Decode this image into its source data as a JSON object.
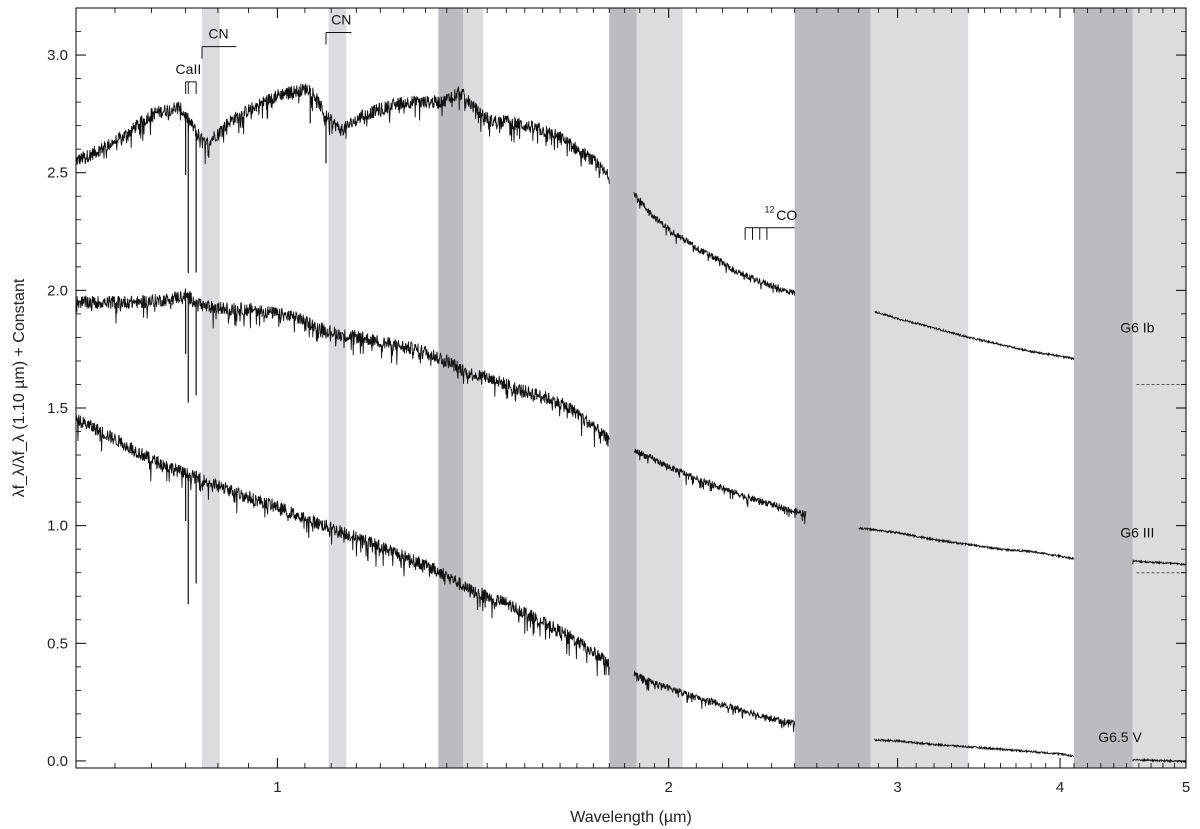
{
  "chart_data": {
    "type": "line",
    "xlabel": "Wavelength (µm)",
    "ylabel": "λf_λ/λf_λ (1.10 µm) + Constant",
    "x_scale": "log",
    "xlim": [
      0.7,
      5.0
    ],
    "ylim": [
      -0.03,
      3.2
    ],
    "x_ticks": [
      {
        "value": 1,
        "label": "1"
      },
      {
        "value": 2,
        "label": "2"
      },
      {
        "value": 3,
        "label": "3"
      },
      {
        "value": 4,
        "label": "4"
      },
      {
        "value": 5,
        "label": "5"
      }
    ],
    "y_ticks": [
      {
        "value": 0.0,
        "label": "0.0"
      },
      {
        "value": 0.5,
        "label": "0.5"
      },
      {
        "value": 1.0,
        "label": "1.0"
      },
      {
        "value": 1.5,
        "label": "1.5"
      },
      {
        "value": 2.0,
        "label": "2.0"
      },
      {
        "value": 2.5,
        "label": "2.5"
      },
      {
        "value": 3.0,
        "label": "3.0"
      }
    ],
    "bands": [
      {
        "x0": 0.875,
        "x1": 0.903,
        "shade": "light"
      },
      {
        "x0": 1.095,
        "x1": 1.13,
        "shade": "light"
      },
      {
        "x0": 1.33,
        "x1": 1.39,
        "shade": "dark"
      },
      {
        "x0": 1.39,
        "x1": 1.44,
        "shade": "light"
      },
      {
        "x0": 1.8,
        "x1": 1.89,
        "shade": "dark"
      },
      {
        "x0": 1.89,
        "x1": 2.05,
        "shade": "light"
      },
      {
        "x0": 2.5,
        "x1": 2.86,
        "shade": "dark"
      },
      {
        "x0": 2.86,
        "x1": 3.4,
        "shade": "light"
      },
      {
        "x0": 4.1,
        "x1": 4.55,
        "shade": "dark"
      },
      {
        "x0": 4.55,
        "x1": 5.0,
        "shade": "light"
      }
    ],
    "series": [
      {
        "name": "G6 Ib",
        "segments": [
          {
            "x": [
              0.7,
              0.72,
              0.76,
              0.8,
              0.84,
              0.88,
              0.92,
              0.96,
              1.0,
              1.04,
              1.06,
              1.09,
              1.12,
              1.16,
              1.2,
              1.25,
              1.3,
              1.34,
              1.38,
              1.42,
              1.46,
              1.5,
              1.55,
              1.6,
              1.65,
              1.7,
              1.75,
              1.8
            ],
            "y": [
              2.55,
              2.58,
              2.65,
              2.75,
              2.78,
              2.62,
              2.72,
              2.78,
              2.83,
              2.85,
              2.86,
              2.74,
              2.68,
              2.74,
              2.77,
              2.8,
              2.8,
              2.8,
              2.85,
              2.77,
              2.72,
              2.72,
              2.7,
              2.68,
              2.65,
              2.6,
              2.55,
              2.48
            ]
          },
          {
            "x": [
              1.88,
              1.92,
              1.96,
              2.0,
              2.05,
              2.1,
              2.15,
              2.2,
              2.25,
              2.3,
              2.35,
              2.4,
              2.45,
              2.5
            ],
            "y": [
              2.42,
              2.35,
              2.3,
              2.26,
              2.22,
              2.18,
              2.15,
              2.12,
              2.08,
              2.06,
              2.04,
              2.02,
              2.0,
              1.99
            ]
          },
          {
            "x": [
              2.88,
              3.0,
              3.2,
              3.4,
              3.6,
              3.8,
              4.0,
              4.1
            ],
            "y": [
              1.91,
              1.88,
              1.84,
              1.8,
              1.77,
              1.74,
              1.72,
              1.71
            ]
          }
        ]
      },
      {
        "name": "G6 III",
        "segments": [
          {
            "x": [
              0.7,
              0.74,
              0.78,
              0.82,
              0.85,
              0.88,
              0.92,
              0.96,
              1.0,
              1.04,
              1.08,
              1.12,
              1.16,
              1.2,
              1.25,
              1.3,
              1.35,
              1.4,
              1.45,
              1.5,
              1.55,
              1.6,
              1.65,
              1.7,
              1.75,
              1.8
            ],
            "y": [
              1.95,
              1.95,
              1.95,
              1.96,
              1.98,
              1.93,
              1.92,
              1.92,
              1.9,
              1.88,
              1.84,
              1.81,
              1.8,
              1.78,
              1.76,
              1.74,
              1.7,
              1.65,
              1.63,
              1.6,
              1.57,
              1.55,
              1.52,
              1.48,
              1.42,
              1.36
            ]
          },
          {
            "x": [
              1.88,
              1.95,
              2.0,
              2.1,
              2.2,
              2.3,
              2.4,
              2.5,
              2.55
            ],
            "y": [
              1.32,
              1.28,
              1.25,
              1.2,
              1.16,
              1.12,
              1.09,
              1.06,
              1.05
            ]
          },
          {
            "x": [
              2.8,
              3.0,
              3.2,
              3.4,
              3.6,
              3.8,
              4.0,
              4.1
            ],
            "y": [
              0.99,
              0.97,
              0.94,
              0.92,
              0.9,
              0.89,
              0.87,
              0.86
            ]
          },
          {
            "x": [
              4.55,
              4.7,
              4.85,
              5.0
            ],
            "y": [
              0.85,
              0.845,
              0.84,
              0.835
            ]
          }
        ]
      },
      {
        "name": "G6.5 V",
        "segments": [
          {
            "x": [
              0.7,
              0.72,
              0.76,
              0.8,
              0.85,
              0.9,
              0.95,
              1.0,
              1.05,
              1.1,
              1.15,
              1.2,
              1.25,
              1.3,
              1.35,
              1.4,
              1.45,
              1.5,
              1.55,
              1.6,
              1.65,
              1.7,
              1.75,
              1.8
            ],
            "y": [
              1.45,
              1.42,
              1.35,
              1.28,
              1.22,
              1.17,
              1.12,
              1.08,
              1.03,
              0.99,
              0.95,
              0.91,
              0.87,
              0.83,
              0.79,
              0.73,
              0.7,
              0.67,
              0.63,
              0.59,
              0.55,
              0.51,
              0.46,
              0.42
            ]
          },
          {
            "x": [
              1.88,
              1.95,
              2.0,
              2.1,
              2.2,
              2.3,
              2.4,
              2.5
            ],
            "y": [
              0.37,
              0.33,
              0.31,
              0.27,
              0.24,
              0.21,
              0.18,
              0.16
            ]
          },
          {
            "x": [
              2.88,
              3.0,
              3.2,
              3.4,
              3.6,
              3.8,
              4.0,
              4.1
            ],
            "y": [
              0.09,
              0.085,
              0.07,
              0.06,
              0.05,
              0.04,
              0.03,
              0.02
            ]
          },
          {
            "x": [
              4.55,
              4.7,
              4.85,
              5.0
            ],
            "y": [
              0.005,
              0.003,
              0.0,
              -0.002
            ]
          }
        ]
      }
    ],
    "absorption_lines": [
      {
        "series": "G6 Ib",
        "x": [
          0.85,
          0.854,
          0.866,
          1.06,
          1.09
        ],
        "depth": [
          0.25,
          0.65,
          0.6,
          0.15,
          0.2
        ]
      },
      {
        "series": "G6 III",
        "x": [
          0.85,
          0.854,
          0.866
        ],
        "depth": [
          0.25,
          0.45,
          0.4
        ]
      },
      {
        "series": "G6.5 V",
        "x": [
          0.85,
          0.854,
          0.866
        ],
        "depth": [
          0.2,
          0.55,
          0.45
        ]
      }
    ],
    "baselines": [
      {
        "series": "G6 Ib",
        "y": 1.6,
        "x0": 4.58,
        "x1": 5.0
      },
      {
        "series": "G6 III",
        "y": 0.8,
        "x0": 4.58,
        "x1": 5.0
      }
    ],
    "annotations": [
      {
        "text": "CaII",
        "x": 0.835,
        "y": 2.92,
        "marks": [
          0.85,
          0.854,
          0.866
        ]
      },
      {
        "text": "CN",
        "x": 0.885,
        "y": 3.07,
        "marks": [
          0.875
        ],
        "bar_to": 0.93
      },
      {
        "text": "CN",
        "x": 1.1,
        "y": 3.13,
        "marks": [
          1.09
        ],
        "bar_to": 1.14
      },
      {
        "text": "12",
        "x": 2.37,
        "y": 2.33
      },
      {
        "text": "CO",
        "x": 2.42,
        "y": 2.3,
        "marks": [
          2.29,
          2.32,
          2.35,
          2.38
        ],
        "bar_to": 2.5
      }
    ],
    "series_labels": [
      {
        "text": "G6 Ib",
        "x": 4.45,
        "y": 1.82
      },
      {
        "text": "G6 III",
        "x": 4.45,
        "y": 0.95
      },
      {
        "text": "G6.5 V",
        "x": 4.28,
        "y": 0.08
      }
    ]
  }
}
